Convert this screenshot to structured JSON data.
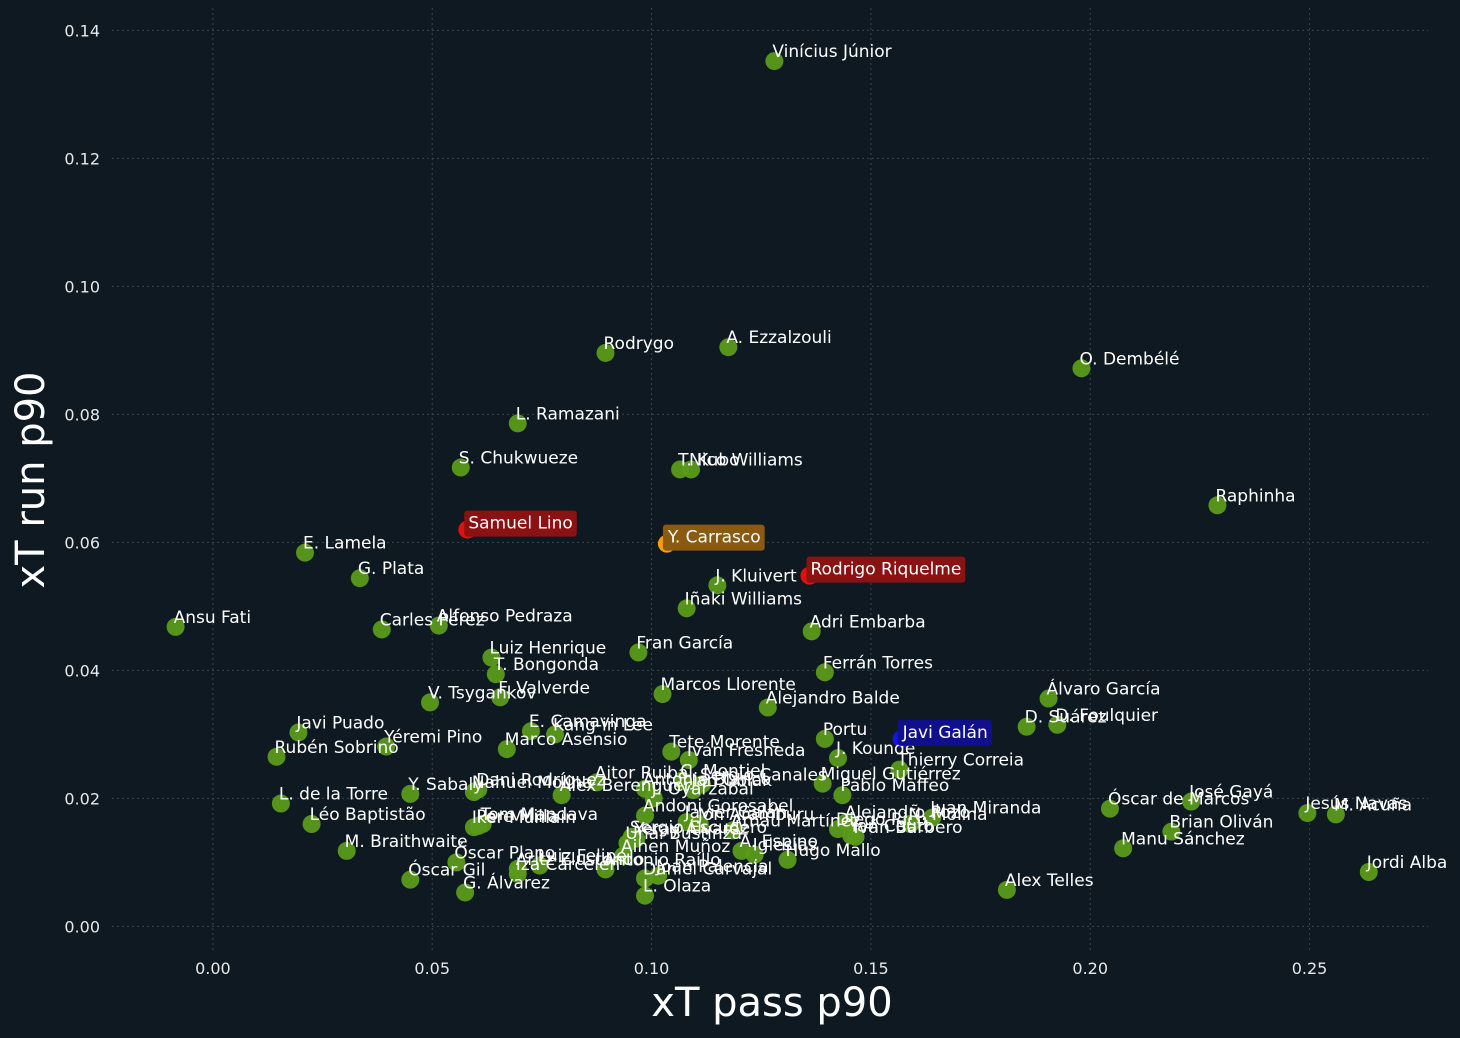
{
  "chart_data": {
    "type": "scatter",
    "xlabel": "xT pass p90",
    "ylabel": "xT run p90",
    "xlim": [
      -0.023,
      0.277
    ],
    "ylim": [
      -0.004,
      0.1435
    ],
    "xticks": [
      0.0,
      0.05,
      0.1,
      0.15,
      0.2,
      0.25
    ],
    "xtick_labels": [
      "0.00",
      "0.05",
      "0.10",
      "0.15",
      "0.20",
      "0.25"
    ],
    "yticks": [
      0.0,
      0.02,
      0.04,
      0.06,
      0.08,
      0.1,
      0.12,
      0.14
    ],
    "ytick_labels": [
      "0.00",
      "0.02",
      "0.04",
      "0.06",
      "0.08",
      "0.10",
      "0.12",
      "0.14"
    ],
    "grid": true,
    "colors": {
      "background": "#0e1921",
      "default_point": "#5a9a1a",
      "highlight_red": "#e01010",
      "highlight_red_box": "#8a1212",
      "highlight_orange": "#ff9c00",
      "highlight_orange_box": "#8a5a10",
      "highlight_blue": "#1414e6",
      "highlight_blue_box": "#10108c"
    },
    "points": [
      {
        "name": "Vinícius Júnior",
        "x": 0.128,
        "y": 0.1352
      },
      {
        "name": "Rodrygo",
        "x": 0.0895,
        "y": 0.0896
      },
      {
        "name": "A. Ezzalzouli",
        "x": 0.1175,
        "y": 0.0905
      },
      {
        "name": "O. Dembélé",
        "x": 0.198,
        "y": 0.0872
      },
      {
        "name": "L. Ramazani",
        "x": 0.0695,
        "y": 0.0786
      },
      {
        "name": "S. Chukwueze",
        "x": 0.0565,
        "y": 0.0717
      },
      {
        "name": "T. Kubo",
        "x": 0.1065,
        "y": 0.0714
      },
      {
        "name": "Nico Williams",
        "x": 0.109,
        "y": 0.0714
      },
      {
        "name": "Raphinha",
        "x": 0.229,
        "y": 0.0658
      },
      {
        "name": "Samuel Lino",
        "x": 0.058,
        "y": 0.062,
        "highlight": "red"
      },
      {
        "name": "Y. Carrasco",
        "x": 0.1035,
        "y": 0.0598,
        "highlight": "orange"
      },
      {
        "name": "E. Lamela",
        "x": 0.021,
        "y": 0.0584
      },
      {
        "name": "Rodrigo Riquelme",
        "x": 0.136,
        "y": 0.0548,
        "highlight": "red"
      },
      {
        "name": "G. Plata",
        "x": 0.0335,
        "y": 0.0544
      },
      {
        "name": "J. Kluivert",
        "x": 0.115,
        "y": 0.0533
      },
      {
        "name": "Iñaki Williams",
        "x": 0.108,
        "y": 0.0497
      },
      {
        "name": "Ansu Fati",
        "x": -0.0085,
        "y": 0.0468
      },
      {
        "name": "Carles Pérez",
        "x": 0.0385,
        "y": 0.0464
      },
      {
        "name": "Alfonso Pedraza",
        "x": 0.0515,
        "y": 0.047
      },
      {
        "name": "Adri Embarba",
        "x": 0.1365,
        "y": 0.0461
      },
      {
        "name": "Luiz Henrique",
        "x": 0.0635,
        "y": 0.042
      },
      {
        "name": "Fran García",
        "x": 0.097,
        "y": 0.0428
      },
      {
        "name": "T. Bongonda",
        "x": 0.0645,
        "y": 0.0394
      },
      {
        "name": "Ferrán Torres",
        "x": 0.1395,
        "y": 0.0397
      },
      {
        "name": "F. Valverde",
        "x": 0.0655,
        "y": 0.0358
      },
      {
        "name": "V. Tsygankov",
        "x": 0.0495,
        "y": 0.035
      },
      {
        "name": "Marcos Llorente",
        "x": 0.1025,
        "y": 0.0363
      },
      {
        "name": "Alejandro Balde",
        "x": 0.1265,
        "y": 0.0342
      },
      {
        "name": "Álvaro García",
        "x": 0.1905,
        "y": 0.0356
      },
      {
        "name": "Javi Puado",
        "x": 0.0195,
        "y": 0.0303
      },
      {
        "name": "E. Camavinga",
        "x": 0.0725,
        "y": 0.0305
      },
      {
        "name": "Kang-in Lee",
        "x": 0.078,
        "y": 0.03
      },
      {
        "name": "D. Suárez",
        "x": 0.1855,
        "y": 0.0312
      },
      {
        "name": "D. Foulquier",
        "x": 0.1925,
        "y": 0.0315
      },
      {
        "name": "Portu",
        "x": 0.1395,
        "y": 0.0293
      },
      {
        "name": "Javi Galán",
        "x": 0.157,
        "y": 0.0293,
        "highlight": "blue"
      },
      {
        "name": "Yéremi Pino",
        "x": 0.0395,
        "y": 0.0281
      },
      {
        "name": "Marco Asensio",
        "x": 0.067,
        "y": 0.0277
      },
      {
        "name": "Rubén Sobrino",
        "x": 0.0145,
        "y": 0.0265
      },
      {
        "name": "Tete Morente",
        "x": 0.1045,
        "y": 0.0273
      },
      {
        "name": "Iván Fresneda",
        "x": 0.1085,
        "y": 0.026
      },
      {
        "name": "J. Koundé",
        "x": 0.1425,
        "y": 0.0263
      },
      {
        "name": "Thierry Correia",
        "x": 0.1565,
        "y": 0.0245
      },
      {
        "name": "Y. Sabaly",
        "x": 0.045,
        "y": 0.0207
      },
      {
        "name": "Dani Rodríguez",
        "x": 0.0605,
        "y": 0.0214
      },
      {
        "name": "Nahuel Molina",
        "x": 0.0595,
        "y": 0.021
      },
      {
        "name": "Aitor Ruibal",
        "x": 0.0875,
        "y": 0.0225
      },
      {
        "name": "Alex Berenguer",
        "x": 0.0795,
        "y": 0.0205
      },
      {
        "name": "C. Montiel",
        "x": 0.107,
        "y": 0.0228
      },
      {
        "name": "Antonio Blanco",
        "x": 0.0985,
        "y": 0.0215
      },
      {
        "name": "Jan Oblak",
        "x": 0.1095,
        "y": 0.0213
      },
      {
        "name": "Sergio Canales",
        "x": 0.1115,
        "y": 0.0222
      },
      {
        "name": "Miguel Gutiérrez",
        "x": 0.139,
        "y": 0.0223
      },
      {
        "name": "J. Oyarzabal",
        "x": 0.1005,
        "y": 0.02
      },
      {
        "name": "Pablo Maffeo",
        "x": 0.1435,
        "y": 0.0205
      },
      {
        "name": "L. de la Torre",
        "x": 0.0155,
        "y": 0.0192
      },
      {
        "name": "Óscar de Marcos",
        "x": 0.2045,
        "y": 0.0184
      },
      {
        "name": "José Gayá",
        "x": 0.223,
        "y": 0.0195
      },
      {
        "name": "Jesús Navas",
        "x": 0.2495,
        "y": 0.0177
      },
      {
        "name": "M. Acuña",
        "x": 0.256,
        "y": 0.0175
      },
      {
        "name": "Andoni Gorosabel",
        "x": 0.0985,
        "y": 0.0173
      },
      {
        "name": "Javier Galán",
        "x": 0.108,
        "y": 0.0163
      },
      {
        "name": "Jon Aramburu",
        "x": 0.111,
        "y": 0.016
      },
      {
        "name": "Alejandro Pozo",
        "x": 0.1445,
        "y": 0.0163
      },
      {
        "name": "Juan Miranda",
        "x": 0.164,
        "y": 0.017
      },
      {
        "name": "Diego Rico",
        "x": 0.1425,
        "y": 0.0152
      },
      {
        "name": "Ñ. Molina",
        "x": 0.159,
        "y": 0.016
      },
      {
        "name": "Léo Baptistão",
        "x": 0.0225,
        "y": 0.016
      },
      {
        "name": "Iker Muniain",
        "x": 0.0595,
        "y": 0.0155
      },
      {
        "name": "Pere Milla",
        "x": 0.0605,
        "y": 0.0157
      },
      {
        "name": "Tom Mandava",
        "x": 0.0615,
        "y": 0.016
      },
      {
        "name": "Brian Oliván",
        "x": 0.2185,
        "y": 0.0148
      },
      {
        "name": "Arnau Martínez",
        "x": 0.1185,
        "y": 0.015
      },
      {
        "name": "Sergio Escudero",
        "x": 0.0955,
        "y": 0.014
      },
      {
        "name": "Yan Couto",
        "x": 0.1455,
        "y": 0.0142
      },
      {
        "name": "Iván Barbero",
        "x": 0.1465,
        "y": 0.014
      },
      {
        "name": "Yeray Álvarez",
        "x": 0.0965,
        "y": 0.0137
      },
      {
        "name": "Unai Bustinza",
        "x": 0.0945,
        "y": 0.013
      },
      {
        "name": "M. Braithwaite",
        "x": 0.0305,
        "y": 0.0118
      },
      {
        "name": "Manu Sánchez",
        "x": 0.2075,
        "y": 0.0122
      },
      {
        "name": "A. Espino",
        "x": 0.1205,
        "y": 0.0118
      },
      {
        "name": "Aihen Muñoz",
        "x": 0.0935,
        "y": 0.011
      },
      {
        "name": "Óscar Plano",
        "x": 0.0555,
        "y": 0.01
      },
      {
        "name": "Luiz Felipe",
        "x": 0.0745,
        "y": 0.0095
      },
      {
        "name": "Hugo Mallo",
        "x": 0.131,
        "y": 0.0104
      },
      {
        "name": "Iglesias",
        "x": 0.1235,
        "y": 0.0112
      },
      {
        "name": "Aritz Elustondo",
        "x": 0.0695,
        "y": 0.009
      },
      {
        "name": "Antonio Raíllo",
        "x": 0.0895,
        "y": 0.0089
      },
      {
        "name": "Iza Carcelén",
        "x": 0.0695,
        "y": 0.0082
      },
      {
        "name": "Daniel Carvajal",
        "x": 0.0985,
        "y": 0.0075
      },
      {
        "name": "Joan Palencia",
        "x": 0.1015,
        "y": 0.0079
      },
      {
        "name": "Jordi Alba",
        "x": 0.2635,
        "y": 0.0085
      },
      {
        "name": "Óscar Gil",
        "x": 0.045,
        "y": 0.0073
      },
      {
        "name": "G. Álvarez",
        "x": 0.0575,
        "y": 0.0053
      },
      {
        "name": "L. Olaza",
        "x": 0.0985,
        "y": 0.0048
      },
      {
        "name": "Alex Telles",
        "x": 0.181,
        "y": 0.0057
      }
    ]
  }
}
